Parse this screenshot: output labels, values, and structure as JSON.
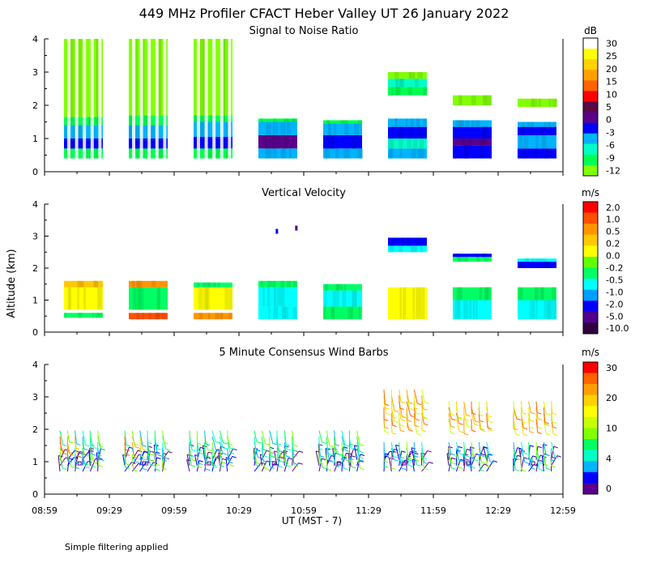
{
  "figure": {
    "title": "449 MHz Profiler CFACT Heber Valley UT 26 January 2022",
    "ylabel": "Altitude (km)",
    "xlabel": "UT  (MST - 7)",
    "footnote": "Simple filtering applied"
  },
  "chart_data": [
    {
      "type": "heatmap",
      "title": "Signal to Noise Ratio",
      "xlabel": "UT (MST - 7)",
      "ylabel": "Altitude (km)",
      "x_ticks": [
        "08:59",
        "09:29",
        "09:59",
        "10:29",
        "10:59",
        "11:29",
        "11:59",
        "12:29",
        "12:59"
      ],
      "y_ticks": [
        "0",
        "1",
        "2",
        "3",
        "4"
      ],
      "ylim": [
        0,
        4
      ],
      "colorbar": {
        "unit": "dB",
        "labels": [
          "30",
          "25",
          "20",
          "15",
          "10",
          "5",
          "0",
          "-3",
          "-6",
          "-9",
          "-12"
        ],
        "colors": [
          "#ffffff",
          "#ffff00",
          "#ffd200",
          "#ffa000",
          "#ff6400",
          "#ff0000",
          "#5a0a46",
          "#5a008c",
          "#0000ff",
          "#00b4ff",
          "#00ffc8",
          "#00ff50",
          "#82ff00"
        ]
      },
      "blocks": [
        {
          "start": "08:59",
          "end": "09:29",
          "rows": [
            [
              0.4,
              0.7,
              "#00ff50"
            ],
            [
              0.7,
              1.0,
              "#0000ff"
            ],
            [
              1.0,
              1.4,
              "#00b4ff"
            ],
            [
              1.4,
              1.65,
              "#00ff50"
            ],
            [
              1.65,
              4.0,
              "#82ff00"
            ]
          ]
        },
        {
          "start": "09:29",
          "end": "09:59",
          "rows": [
            [
              0.4,
              0.7,
              "#00ff50"
            ],
            [
              0.7,
              1.0,
              "#0000ff"
            ],
            [
              1.0,
              1.4,
              "#00b4ff"
            ],
            [
              1.4,
              1.7,
              "#00ff50"
            ],
            [
              1.7,
              4.0,
              "#82ff00"
            ]
          ]
        },
        {
          "start": "09:59",
          "end": "10:29",
          "rows": [
            [
              0.4,
              0.7,
              "#00ff50"
            ],
            [
              0.7,
              1.05,
              "#0000ff"
            ],
            [
              1.05,
              1.5,
              "#00b4ff"
            ],
            [
              1.5,
              1.7,
              "#00ff50"
            ],
            [
              1.7,
              4.0,
              "#82ff00"
            ]
          ]
        },
        {
          "start": "10:29",
          "end": "10:59",
          "rows": [
            [
              0.4,
              0.7,
              "#00b4ff"
            ],
            [
              0.7,
              1.1,
              "#5a008c"
            ],
            [
              1.1,
              1.5,
              "#00b4ff"
            ],
            [
              1.5,
              1.6,
              "#00ff50"
            ]
          ]
        },
        {
          "start": "10:59",
          "end": "11:29",
          "rows": [
            [
              0.4,
              0.7,
              "#00b4ff"
            ],
            [
              0.7,
              1.1,
              "#0000ff"
            ],
            [
              1.1,
              1.45,
              "#00b4ff"
            ],
            [
              1.45,
              1.55,
              "#00ff50"
            ]
          ]
        },
        {
          "start": "11:29",
          "end": "11:59",
          "rows": [
            [
              0.4,
              0.7,
              "#00b4ff"
            ],
            [
              0.7,
              1.0,
              "#00ffc8"
            ],
            [
              1.0,
              1.35,
              "#0000ff"
            ],
            [
              1.35,
              1.6,
              "#00b4ff"
            ],
            [
              2.3,
              2.55,
              "#00ff50"
            ],
            [
              2.55,
              2.8,
              "#00ffc8"
            ],
            [
              2.8,
              3.0,
              "#82ff00"
            ]
          ]
        },
        {
          "start": "11:59",
          "end": "12:29",
          "rows": [
            [
              0.4,
              0.8,
              "#0000ff"
            ],
            [
              0.8,
              1.0,
              "#5a008c"
            ],
            [
              1.0,
              1.35,
              "#0000ff"
            ],
            [
              1.35,
              1.55,
              "#00b4ff"
            ],
            [
              2.0,
              2.3,
              "#82ff00"
            ]
          ]
        },
        {
          "start": "12:29",
          "end": "12:59",
          "rows": [
            [
              0.4,
              0.7,
              "#0000ff"
            ],
            [
              0.7,
              1.1,
              "#00b4ff"
            ],
            [
              1.1,
              1.35,
              "#0000ff"
            ],
            [
              1.35,
              1.5,
              "#00b4ff"
            ],
            [
              1.95,
              2.2,
              "#82ff00"
            ]
          ]
        }
      ]
    },
    {
      "type": "heatmap",
      "title": "Vertical Velocity",
      "xlabel": "UT (MST - 7)",
      "ylabel": "Altitude (km)",
      "x_ticks": [
        "08:59",
        "09:29",
        "09:59",
        "10:29",
        "10:59",
        "11:29",
        "11:59",
        "12:29",
        "12:59"
      ],
      "y_ticks": [
        "0",
        "1",
        "2",
        "3",
        "4"
      ],
      "ylim": [
        0,
        4
      ],
      "colorbar": {
        "unit": "m/s",
        "labels": [
          "2.0",
          "1.0",
          "0.5",
          "0.2",
          "0.0",
          "-0.2",
          "-0.5",
          "-1.0",
          "-2.0",
          "-5.0",
          "-10.0"
        ],
        "colors": [
          "#ff0000",
          "#ff5000",
          "#ff9600",
          "#ffc800",
          "#ffff00",
          "#64ff00",
          "#00ff64",
          "#00ffff",
          "#00a0ff",
          "#0000ff",
          "#50008c",
          "#300040"
        ]
      },
      "blocks": [
        {
          "start": "08:59",
          "end": "09:29",
          "rows": [
            [
              0.45,
              0.6,
              "#00ff64"
            ],
            [
              0.7,
              1.4,
              "#ffff00"
            ],
            [
              1.4,
              1.6,
              "#ffc800"
            ]
          ]
        },
        {
          "start": "09:29",
          "end": "09:59",
          "rows": [
            [
              0.4,
              0.6,
              "#ff5000"
            ],
            [
              0.7,
              1.4,
              "#00ff64"
            ],
            [
              1.4,
              1.6,
              "#ff9600"
            ]
          ]
        },
        {
          "start": "09:59",
          "end": "10:29",
          "rows": [
            [
              0.4,
              0.6,
              "#ff9600"
            ],
            [
              0.7,
              1.4,
              "#ffff00"
            ],
            [
              1.4,
              1.55,
              "#00ff64"
            ]
          ]
        },
        {
          "start": "10:29",
          "end": "10:59",
          "rows": [
            [
              0.4,
              0.8,
              "#00ffff"
            ],
            [
              0.8,
              1.4,
              "#00ffff"
            ],
            [
              1.4,
              1.6,
              "#00ff64"
            ]
          ]
        },
        {
          "start": "10:59",
          "end": "11:29",
          "rows": [
            [
              0.4,
              0.8,
              "#00ff64"
            ],
            [
              0.8,
              1.3,
              "#00ffff"
            ],
            [
              1.3,
              1.5,
              "#00ff64"
            ]
          ]
        },
        {
          "start": "11:29",
          "end": "11:59",
          "rows": [
            [
              0.4,
              1.4,
              "#ffff00"
            ],
            [
              2.5,
              2.7,
              "#00ffff"
            ],
            [
              2.7,
              2.95,
              "#0000ff"
            ]
          ]
        },
        {
          "start": "11:59",
          "end": "12:29",
          "rows": [
            [
              0.4,
              1.0,
              "#00ffff"
            ],
            [
              1.0,
              1.4,
              "#00ff64"
            ],
            [
              2.2,
              2.35,
              "#00ff64"
            ],
            [
              2.35,
              2.45,
              "#0000ff"
            ]
          ]
        },
        {
          "start": "12:29",
          "end": "12:59",
          "rows": [
            [
              0.4,
              1.0,
              "#00ffff"
            ],
            [
              1.0,
              1.4,
              "#00ff64"
            ],
            [
              2.0,
              2.2,
              "#0000ff"
            ],
            [
              2.2,
              2.3,
              "#00ffff"
            ]
          ]
        }
      ],
      "specks": [
        {
          "t": "10:46",
          "alt": 3.15,
          "color": "#0000ff"
        },
        {
          "t": "10:55",
          "alt": 3.25,
          "color": "#50008c"
        }
      ]
    },
    {
      "type": "scatter",
      "title": "5 Minute Consensus Wind Barbs",
      "xlabel": "UT (MST - 7)",
      "ylabel": "Altitude (km)",
      "x_ticks": [
        "08:59",
        "09:29",
        "09:59",
        "10:29",
        "10:59",
        "11:29",
        "11:59",
        "12:29",
        "12:59"
      ],
      "y_ticks": [
        "0",
        "1",
        "2",
        "3",
        "4"
      ],
      "ylim": [
        0,
        4
      ],
      "colorbar": {
        "unit": "m/s",
        "labels": [
          "30",
          "20",
          "10",
          "4",
          "0"
        ],
        "colors": [
          "#ff0000",
          "#ff6400",
          "#ffa000",
          "#ffd200",
          "#ffff00",
          "#c8ff00",
          "#82ff00",
          "#00ff64",
          "#00ffc8",
          "#00b4ff",
          "#0000ff",
          "#5a008c"
        ]
      },
      "groups": [
        {
          "start": "08:59",
          "end": "09:29"
        },
        {
          "start": "09:29",
          "end": "09:59"
        },
        {
          "start": "09:59",
          "end": "10:29"
        },
        {
          "start": "10:29",
          "end": "10:59"
        },
        {
          "start": "10:59",
          "end": "11:29"
        },
        {
          "start": "11:29",
          "end": "11:59"
        },
        {
          "start": "11:59",
          "end": "12:29"
        },
        {
          "start": "12:29",
          "end": "12:59"
        }
      ]
    }
  ]
}
